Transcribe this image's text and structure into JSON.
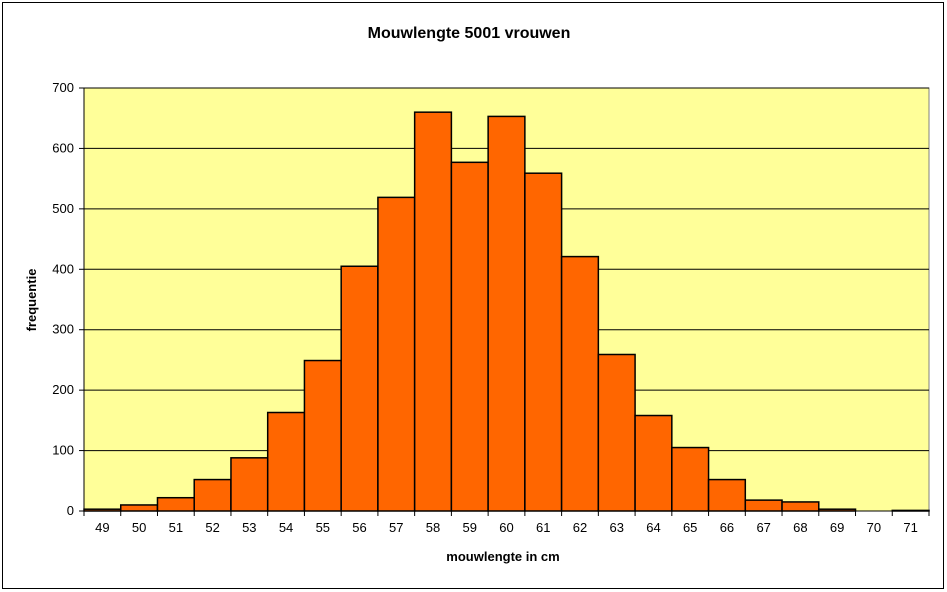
{
  "chart_data": {
    "type": "bar",
    "title": "Mouwlengte 5001 vrouwen",
    "xlabel": "mouwlengte in cm",
    "ylabel": "frequentie",
    "categories": [
      "49",
      "50",
      "51",
      "52",
      "53",
      "54",
      "55",
      "56",
      "57",
      "58",
      "59",
      "60",
      "61",
      "62",
      "63",
      "64",
      "65",
      "66",
      "67",
      "68",
      "69",
      "70",
      "71"
    ],
    "values": [
      3,
      10,
      22,
      52,
      88,
      163,
      249,
      405,
      519,
      660,
      577,
      653,
      559,
      421,
      259,
      158,
      105,
      52,
      18,
      15,
      3,
      0,
      1
    ],
    "ylim": [
      0,
      700
    ],
    "yticks": [
      0,
      100,
      200,
      300,
      400,
      500,
      600,
      700
    ],
    "grid": true,
    "colors": {
      "plot_background": "#ffff99",
      "bar_fill": "#ff6600",
      "bar_stroke": "#000000",
      "gridline": "#000000"
    }
  }
}
